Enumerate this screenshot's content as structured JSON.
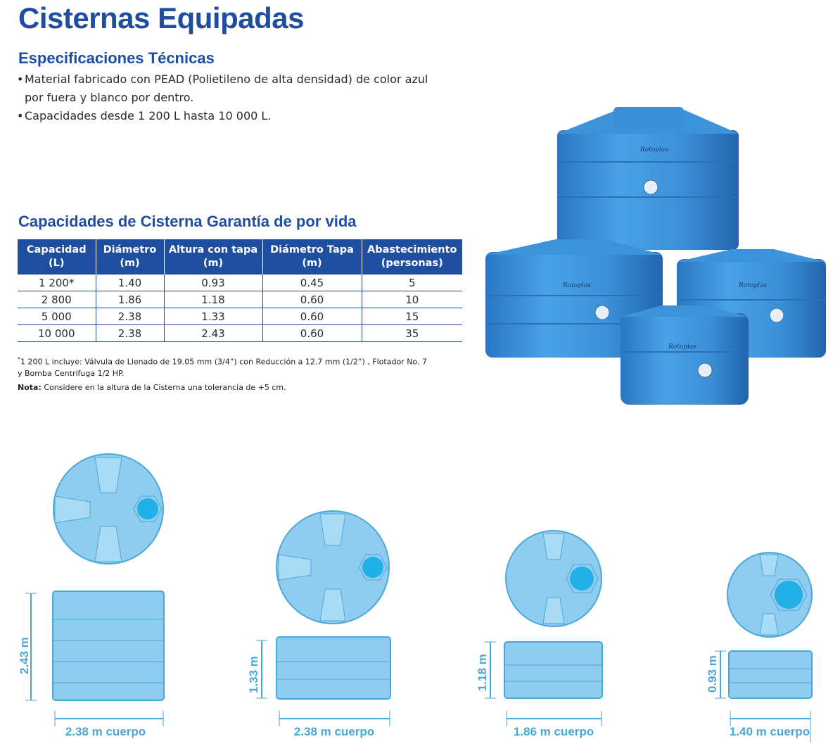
{
  "title": "Cisternas Equipadas",
  "specs": {
    "heading": "Especificaciones Técnicas",
    "bullet": "•",
    "items": [
      "Material fabricado con PEAD (Polietileno de alta densidad) de color azul por fuera y blanco por dentro.",
      "Capacidades desde 1 200 L hasta 10 000 L."
    ]
  },
  "capacities": {
    "heading": "Capacidades de Cisterna Garantía de por vida",
    "columns": [
      [
        "Capacidad",
        "(L)"
      ],
      [
        "Diámetro",
        "(m)"
      ],
      [
        "Altura con tapa",
        "(m)"
      ],
      [
        "Diámetro Tapa",
        "(m)"
      ],
      [
        "Abastecimiento",
        "(personas)"
      ]
    ],
    "rows": [
      [
        "1  200*",
        "1.40",
        "0.93",
        "0.45",
        "5"
      ],
      [
        "2 800",
        "1.86",
        "1.18",
        "0.60",
        "10"
      ],
      [
        "5 000",
        "2.38",
        "1.33",
        "0.60",
        "15"
      ],
      [
        "10 000",
        "2.38",
        "2.43",
        "0.60",
        "35"
      ]
    ]
  },
  "notes": {
    "footnote_mark": "*",
    "footnote_line1": "1 200 L incluye:  Válvula de Llenado de 19.05 mm (3/4”) con Reducción a 12.7 mm (1/2”) , Flotador No. 7",
    "footnote_line2": "y Bomba Centrífuga 1/2 HP.",
    "nota_label": "Nota:",
    "nota_text": " Considere en la altura de la Cisterna una tolerancia de +5 cm."
  },
  "diagrams": [
    {
      "height_label": "2.43 m",
      "width_label": "2.38 m cuerpo"
    },
    {
      "height_label": "1.33 m",
      "width_label": "2.38 m cuerpo"
    },
    {
      "height_label": "1.18 m",
      "width_label": "1.86 m cuerpo"
    },
    {
      "height_label": "0.93 m",
      "width_label": "1.40 m cuerpo"
    }
  ],
  "colors": {
    "brand_blue": "#1f4ea1",
    "tank_blue": "#3b8fd6",
    "diagram_fill": "#8fcdf0",
    "diagram_stroke": "#4aa8d8",
    "dimension_text": "#4aa8d8"
  }
}
